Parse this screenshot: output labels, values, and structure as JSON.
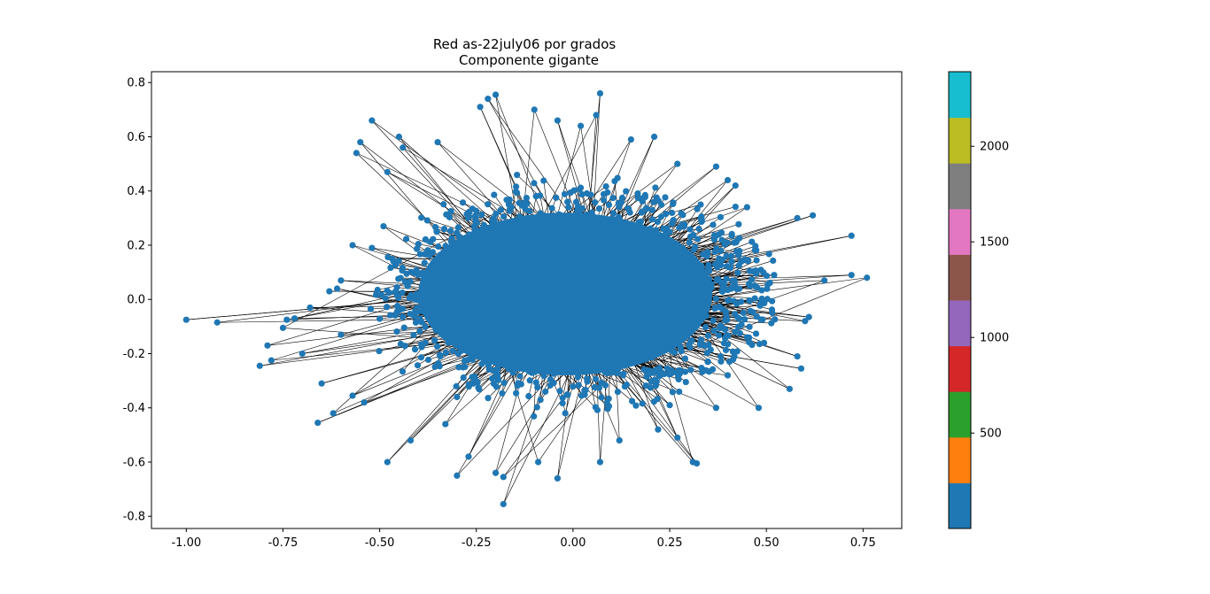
{
  "chart_data": {
    "type": "scatter",
    "title": "Red as-22july06 por grados",
    "subtitle": "Componente gigante",
    "xlabel": "",
    "ylabel": "",
    "xlim": [
      -1.09,
      0.85
    ],
    "ylim": [
      -0.845,
      0.84
    ],
    "x_ticks": [
      "-1.00",
      "-0.75",
      "-0.50",
      "-0.25",
      "0.00",
      "0.25",
      "0.50",
      "0.75"
    ],
    "x_tick_values": [
      -1.0,
      -0.75,
      -0.5,
      -0.25,
      0.0,
      0.25,
      0.5,
      0.75
    ],
    "y_ticks": [
      "-0.8",
      "-0.6",
      "-0.4",
      "-0.2",
      "0.0",
      "0.2",
      "0.4",
      "0.6",
      "0.8"
    ],
    "y_tick_values": [
      -0.8,
      -0.6,
      -0.4,
      -0.2,
      0.0,
      0.2,
      0.4,
      0.6,
      0.8
    ],
    "grid": false,
    "node_color": "#1f77b4",
    "edge_color": "#000000",
    "colorbar": {
      "ticks": [
        "500",
        "1000",
        "1500",
        "2000"
      ],
      "tick_values": [
        500,
        1000,
        1500,
        2000
      ],
      "range": [
        1,
        2390
      ],
      "colors": [
        "#1f77b4",
        "#ff7f0e",
        "#2ca02c",
        "#d62728",
        "#9467bd",
        "#8c564b",
        "#e377c2",
        "#7f7f7f",
        "#bcbd22",
        "#17becf"
      ]
    },
    "points": [
      [
        -1.0,
        -0.075
      ],
      [
        -0.92,
        -0.085
      ],
      [
        -0.81,
        -0.245
      ],
      [
        -0.79,
        -0.17
      ],
      [
        -0.78,
        -0.225
      ],
      [
        -0.75,
        -0.105
      ],
      [
        -0.74,
        -0.075
      ],
      [
        -0.72,
        -0.07
      ],
      [
        -0.7,
        -0.2
      ],
      [
        -0.66,
        -0.455
      ],
      [
        -0.65,
        -0.31
      ],
      [
        -0.62,
        -0.42
      ],
      [
        -0.57,
        0.2
      ],
      [
        -0.56,
        0.54
      ],
      [
        -0.55,
        0.58
      ],
      [
        -0.6,
        0.07
      ],
      [
        -0.61,
        0.04
      ],
      [
        -0.52,
        0.66
      ],
      [
        -0.45,
        0.6
      ],
      [
        -0.44,
        0.56
      ],
      [
        -0.48,
        -0.6
      ],
      [
        -0.42,
        -0.52
      ],
      [
        -0.3,
        -0.65
      ],
      [
        -0.18,
        -0.655
      ],
      [
        -0.18,
        -0.755
      ],
      [
        -0.2,
        0.755
      ],
      [
        -0.22,
        0.74
      ],
      [
        -0.24,
        0.71
      ],
      [
        0.07,
        0.76
      ],
      [
        0.06,
        0.68
      ],
      [
        0.02,
        0.64
      ],
      [
        -0.04,
        0.66
      ],
      [
        0.21,
        0.6
      ],
      [
        0.27,
        0.5
      ],
      [
        0.37,
        0.49
      ],
      [
        0.4,
        0.44
      ],
      [
        0.42,
        0.42
      ],
      [
        0.45,
        0.34
      ],
      [
        0.58,
        0.3
      ],
      [
        0.62,
        0.31
      ],
      [
        0.72,
        0.235
      ],
      [
        0.76,
        0.08
      ],
      [
        0.65,
        0.07
      ],
      [
        0.72,
        0.09
      ],
      [
        0.6,
        -0.08
      ],
      [
        0.61,
        -0.065
      ],
      [
        0.58,
        -0.21
      ],
      [
        0.59,
        -0.255
      ],
      [
        0.56,
        -0.33
      ],
      [
        0.48,
        -0.4
      ],
      [
        0.37,
        -0.4
      ],
      [
        0.31,
        -0.6
      ],
      [
        0.32,
        -0.605
      ],
      [
        0.27,
        -0.51
      ],
      [
        0.22,
        -0.48
      ],
      [
        0.12,
        -0.52
      ],
      [
        0.07,
        -0.6
      ],
      [
        -0.04,
        -0.66
      ],
      [
        -0.09,
        -0.6
      ],
      [
        -0.2,
        -0.64
      ],
      [
        -0.27,
        -0.58
      ],
      [
        -0.33,
        -0.46
      ],
      [
        -0.54,
        -0.38
      ],
      [
        -0.57,
        -0.355
      ],
      [
        -0.6,
        -0.13
      ],
      [
        -0.68,
        -0.03
      ],
      [
        -0.63,
        0.03
      ],
      [
        -0.52,
        0.19
      ],
      [
        -0.49,
        0.27
      ],
      [
        -0.48,
        0.47
      ],
      [
        -0.35,
        0.58
      ],
      [
        -0.1,
        0.7
      ],
      [
        0.15,
        0.59
      ],
      [
        0.33,
        0.35
      ],
      [
        0.52,
        0.09
      ],
      [
        0.45,
        -0.14
      ],
      [
        0.4,
        -0.28
      ],
      [
        0.25,
        -0.39
      ],
      [
        -0.02,
        -0.42
      ],
      [
        -0.3,
        -0.36
      ]
    ]
  }
}
